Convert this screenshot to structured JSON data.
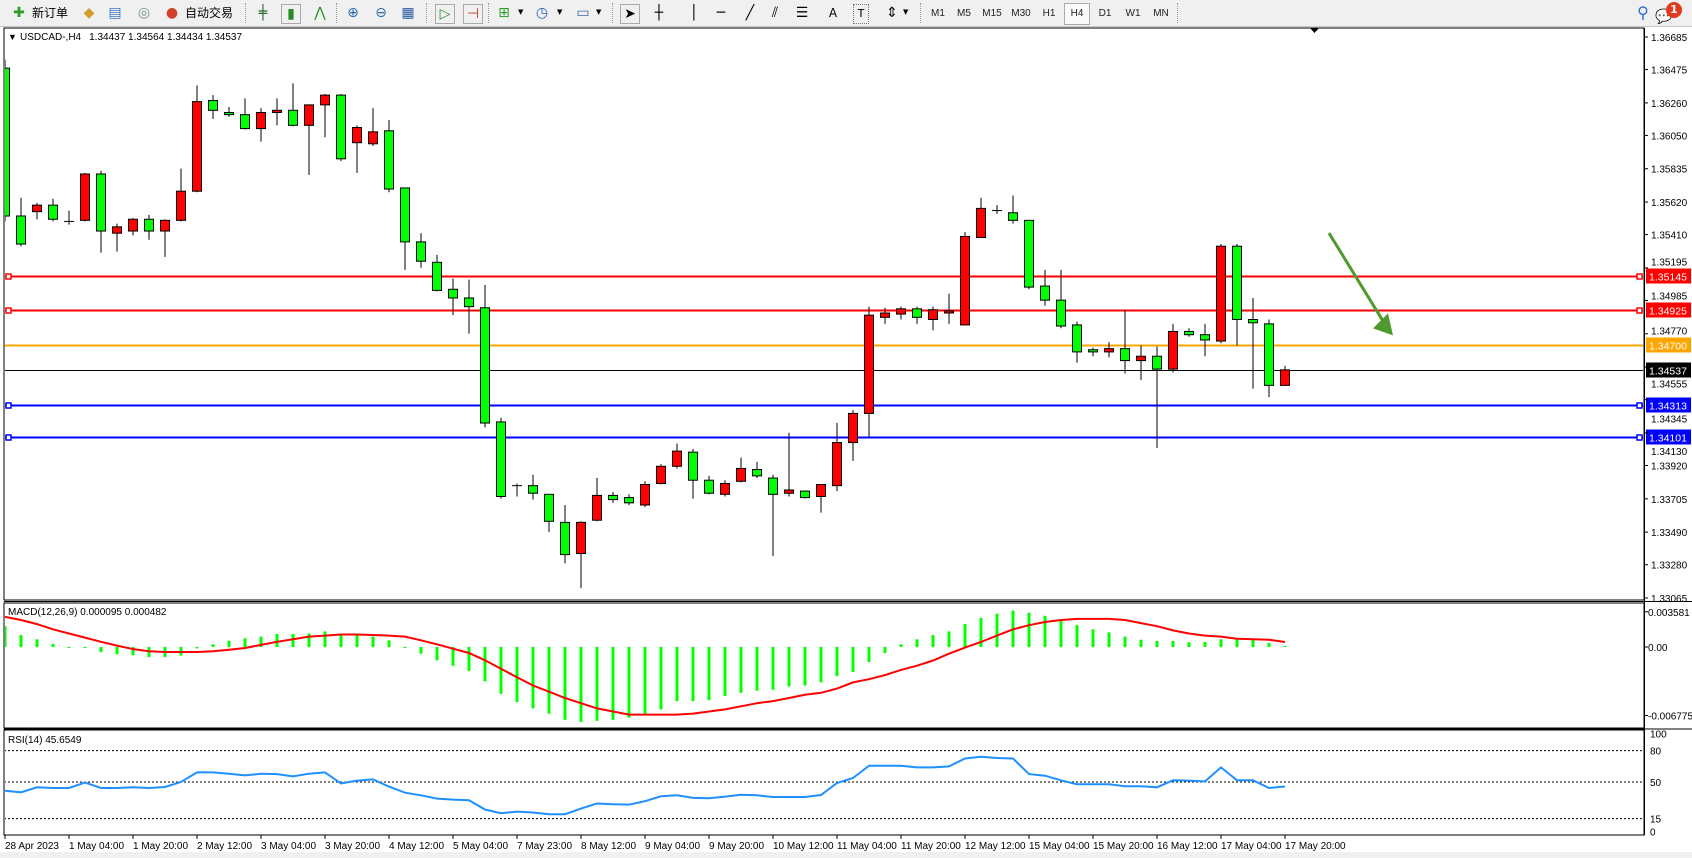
{
  "toolbar": {
    "new_order_label": "新订单",
    "auto_trading_label": "自动交易",
    "timeframes": [
      "M1",
      "M5",
      "M15",
      "M30",
      "H1",
      "H4",
      "D1",
      "W1",
      "MN"
    ],
    "selected_timeframe": "H4",
    "text_tool": "A",
    "notification_count": "1",
    "icons": [
      "new-order-icon",
      "market-watch-icon",
      "navigator-icon",
      "signals-icon",
      "auto-trading-icon",
      "bar-chart-icon",
      "candlestick-icon",
      "line-chart-icon",
      "zoom-in-icon",
      "zoom-out-icon",
      "tile-windows-icon",
      "autoscroll-icon",
      "chart-shift-icon",
      "indicators-icon",
      "periods-icon",
      "templates-icon",
      "cursor-icon",
      "crosshair-icon",
      "vertical-line-icon",
      "horizontal-line-icon",
      "trendline-icon",
      "equidistant-channel-icon",
      "fibonacci-icon",
      "text-icon",
      "text-label-icon",
      "arrows-icon",
      "search-icon",
      "notification-icon"
    ]
  },
  "chart_header": {
    "symbol": "USDCAD-,H4",
    "ohlc": "1.34437 1.34564 1.34434 1.34537"
  },
  "colors": {
    "bull_candle": "#ff0000",
    "bear_candle": "#00ff00",
    "macd_histogram": "#00ff00",
    "macd_signal": "#ff0000",
    "rsi_line": "#1e90ff",
    "resistance": "#ff0000",
    "pivot": "#ffa500",
    "support": "#0000ff",
    "bid": "#000000",
    "arrow": "#4e9a2e"
  },
  "chart_data": [
    {
      "type": "candlestick",
      "ylim": [
        1.33065,
        1.36685
      ],
      "y_ticks": [
        "1.36685",
        "1.36475",
        "1.36260",
        "1.36050",
        "1.35835",
        "1.35620",
        "1.35410",
        "1.35195",
        "1.34985",
        "1.34770",
        "1.34555",
        "1.34345",
        "1.34130",
        "1.33920",
        "1.33705",
        "1.33490",
        "1.33280",
        "1.33065"
      ],
      "x_labels": [
        "28 Apr 2023",
        "1 May 04:00",
        "1 May 20:00",
        "2 May 12:00",
        "3 May 04:00",
        "3 May 20:00",
        "4 May 12:00",
        "5 May 04:00",
        "7 May 23:00",
        "8 May 12:00",
        "9 May 04:00",
        "9 May 20:00",
        "10 May 12:00",
        "11 May 04:00",
        "11 May 20:00",
        "12 May 12:00",
        "15 May 04:00",
        "15 May 20:00",
        "16 May 12:00",
        "17 May 04:00",
        "17 May 20:00"
      ],
      "x_label_every": 4,
      "ohlc": [
        [
          1.36484,
          1.36539,
          1.35495,
          1.3553
        ],
        [
          1.3553,
          1.35648,
          1.35335,
          1.35349
        ],
        [
          1.35558,
          1.35614,
          1.35509,
          1.356
        ],
        [
          1.356,
          1.35641,
          1.35495,
          1.35509
        ],
        [
          1.35495,
          1.35565,
          1.35474,
          1.35492
        ],
        [
          1.35502,
          1.35808,
          1.35495,
          1.35801
        ],
        [
          1.35801,
          1.35822,
          1.35293,
          1.35433
        ],
        [
          1.35419,
          1.35481,
          1.353,
          1.3546
        ],
        [
          1.35433,
          1.35516,
          1.35405,
          1.35509
        ],
        [
          1.35509,
          1.35537,
          1.35377,
          1.35433
        ],
        [
          1.35433,
          1.35509,
          1.35266,
          1.35502
        ],
        [
          1.35502,
          1.35836,
          1.35495,
          1.3569
        ],
        [
          1.3569,
          1.36372,
          1.35683,
          1.36268
        ],
        [
          1.36275,
          1.3631,
          1.36156,
          1.36212
        ],
        [
          1.36198,
          1.36233,
          1.3617,
          1.36184
        ],
        [
          1.36184,
          1.36289,
          1.36087,
          1.36094
        ],
        [
          1.36094,
          1.36226,
          1.3601,
          1.36198
        ],
        [
          1.36198,
          1.36289,
          1.36115,
          1.36212
        ],
        [
          1.36212,
          1.36386,
          1.36108,
          1.36115
        ],
        [
          1.36115,
          1.36247,
          1.35795,
          1.36247
        ],
        [
          1.36247,
          1.36317,
          1.36038,
          1.3631
        ],
        [
          1.3631,
          1.36317,
          1.35885,
          1.35899
        ],
        [
          1.36003,
          1.36115,
          1.35808,
          1.36101
        ],
        [
          1.35996,
          1.36226,
          1.35982,
          1.36073
        ],
        [
          1.3608,
          1.36149,
          1.35683,
          1.35704
        ],
        [
          1.35711,
          1.35711,
          1.35182,
          1.35363
        ],
        [
          1.35363,
          1.35419,
          1.35196,
          1.35238
        ],
        [
          1.35231,
          1.35279,
          1.35043,
          1.3505
        ],
        [
          1.35057,
          1.35126,
          1.3489,
          1.35001
        ],
        [
          1.35001,
          1.35119,
          1.34771,
          1.34945
        ],
        [
          1.34938,
          1.35085,
          1.34166,
          1.34194
        ],
        [
          1.34201,
          1.34228,
          1.33706,
          1.3372
        ],
        [
          1.3379,
          1.33804,
          1.3372,
          1.33783
        ],
        [
          1.3379,
          1.3386,
          1.337,
          1.33741
        ],
        [
          1.33734,
          1.33734,
          1.33491,
          1.3356
        ],
        [
          1.33553,
          1.33665,
          1.33289,
          1.33345
        ],
        [
          1.33352,
          1.3356,
          1.33129,
          1.33553
        ],
        [
          1.33567,
          1.33839,
          1.3356,
          1.33727
        ],
        [
          1.33727,
          1.33748,
          1.33679,
          1.337
        ],
        [
          1.33713,
          1.33734,
          1.33665,
          1.33679
        ],
        [
          1.33665,
          1.33818,
          1.33651,
          1.33797
        ],
        [
          1.33804,
          1.33929,
          1.33797,
          1.33915
        ],
        [
          1.33915,
          1.34061,
          1.33901,
          1.34013
        ],
        [
          1.34006,
          1.34027,
          1.33706,
          1.33825
        ],
        [
          1.33825,
          1.33853,
          1.33734,
          1.33741
        ],
        [
          1.33734,
          1.33825,
          1.3372,
          1.33804
        ],
        [
          1.33818,
          1.33971,
          1.33811,
          1.33901
        ],
        [
          1.33894,
          1.33943,
          1.33839,
          1.33853
        ],
        [
          1.33839,
          1.3386,
          1.33336,
          1.33734
        ],
        [
          1.33741,
          1.34131,
          1.3372,
          1.33762
        ],
        [
          1.33755,
          1.33755,
          1.33706,
          1.33713
        ],
        [
          1.3372,
          1.33797,
          1.33616,
          1.33797
        ],
        [
          1.3379,
          1.34194,
          1.33755,
          1.34068
        ],
        [
          1.34068,
          1.34277,
          1.3395,
          1.34256
        ],
        [
          1.34256,
          1.34945,
          1.34103,
          1.3489
        ],
        [
          1.34876,
          1.34938,
          1.34834,
          1.34904
        ],
        [
          1.34897,
          1.34945,
          1.34862,
          1.34931
        ],
        [
          1.34931,
          1.34945,
          1.34834,
          1.34876
        ],
        [
          1.34862,
          1.34945,
          1.34792,
          1.34925
        ],
        [
          1.34904,
          1.35029,
          1.34834,
          1.34918
        ],
        [
          1.34827,
          1.35426,
          1.34827,
          1.35398
        ],
        [
          1.35391,
          1.35648,
          1.35391,
          1.35579
        ],
        [
          1.35565,
          1.356,
          1.35544,
          1.35558
        ],
        [
          1.35551,
          1.35662,
          1.35481,
          1.35502
        ],
        [
          1.35502,
          1.35502,
          1.35057,
          1.35071
        ],
        [
          1.35078,
          1.35182,
          1.34952,
          1.34987
        ],
        [
          1.34987,
          1.35182,
          1.34806,
          1.3482
        ],
        [
          1.34827,
          1.34848,
          1.34583,
          1.34653
        ],
        [
          1.34667,
          1.34681,
          1.34625,
          1.34653
        ],
        [
          1.34653,
          1.34716,
          1.34618,
          1.34674
        ],
        [
          1.34674,
          1.34925,
          1.34514,
          1.34597
        ],
        [
          1.34597,
          1.34695,
          1.34472,
          1.34625
        ],
        [
          1.34625,
          1.34688,
          1.34034,
          1.34542
        ],
        [
          1.34542,
          1.34834,
          1.34521,
          1.34785
        ],
        [
          1.34785,
          1.34806,
          1.34751,
          1.34764
        ],
        [
          1.34764,
          1.34834,
          1.34625,
          1.3473
        ],
        [
          1.34723,
          1.35349,
          1.34709,
          1.35335
        ],
        [
          1.35335,
          1.35349,
          1.34695,
          1.34862
        ],
        [
          1.34862,
          1.35001,
          1.34416,
          1.34841
        ],
        [
          1.34834,
          1.34862,
          1.34361,
          1.34437
        ],
        [
          1.34437,
          1.34564,
          1.34434,
          1.34537
        ]
      ],
      "horizontal_lines": [
        {
          "price": "1.35145",
          "color": "#ff0000",
          "handle": true
        },
        {
          "price": "1.34925",
          "color": "#ff0000",
          "handle": true
        },
        {
          "price": "1.34700",
          "color": "#ffa500",
          "handle": false
        },
        {
          "price": "1.34537",
          "color": "#000000",
          "handle": false
        },
        {
          "price": "1.34313",
          "color": "#0000ff",
          "handle": true
        },
        {
          "price": "1.34101",
          "color": "#0000ff",
          "handle": true
        }
      ],
      "annotation_arrow": {
        "direction": "down-right",
        "from_price": 1.3542,
        "to_price": 1.3476,
        "color": "#4e9a2e"
      }
    },
    {
      "type": "bar+line",
      "title": "MACD(12,26,9) 0.000095 0.000482",
      "ylim": [
        -0.006775,
        0.003581
      ],
      "y_ticks": [
        "0.003581",
        "0.00",
        "-0.006775"
      ],
      "histogram": [
        0.002,
        0.00115,
        0.00074,
        0.0003,
        -3e-05,
        -6e-05,
        -0.00048,
        -0.0007,
        -0.0008,
        -0.00096,
        -0.00096,
        -0.00083,
        -0.00013,
        0.00026,
        0.0006,
        0.00083,
        0.001,
        0.00125,
        0.00125,
        0.0013,
        0.0015,
        0.00125,
        0.00115,
        0.001,
        0.00064,
        -6e-05,
        -0.00064,
        -0.00128,
        -0.0018,
        -0.0023,
        -0.0033,
        -0.0045,
        -0.0053,
        -0.0059,
        -0.0064,
        -0.007,
        -0.0072,
        -0.0071,
        -0.007,
        -0.0068,
        -0.0064,
        -0.006,
        -0.0052,
        -0.0052,
        -0.0051,
        -0.0047,
        -0.0044,
        -0.0042,
        -0.0041,
        -0.0038,
        -0.0037,
        -0.0034,
        -0.0028,
        -0.0024,
        -0.00144,
        -0.00058,
        0.00026,
        0.00074,
        0.00115,
        0.0015,
        0.0022,
        0.0028,
        0.0032,
        0.0035,
        0.0033,
        0.003,
        0.0025,
        0.0021,
        0.0017,
        0.0014,
        0.001,
        0.0007,
        0.00058,
        0.00058,
        0.00045,
        0.00048,
        0.00074,
        0.00074,
        0.00074,
        0.00038,
        9.5e-05
      ],
      "signal": [
        0.0029,
        0.0026,
        0.0022,
        0.0017,
        0.0013,
        0.0009,
        0.0005,
        0.00013,
        -0.0002,
        -0.0004,
        -0.00048,
        -0.00048,
        -0.00048,
        -0.0004,
        -0.00026,
        -0.0001,
        0.0002,
        0.0005,
        0.00074,
        0.001,
        0.0011,
        0.0012,
        0.0012,
        0.00115,
        0.0011,
        0.001,
        0.00064,
        0.00026,
        -0.00016,
        -0.00058,
        -0.00128,
        -0.0021,
        -0.0029,
        -0.0037,
        -0.0043,
        -0.0049,
        -0.0054,
        -0.0059,
        -0.0062,
        -0.0065,
        -0.0065,
        -0.0065,
        -0.0065,
        -0.0064,
        -0.0062,
        -0.006,
        -0.0057,
        -0.0054,
        -0.0052,
        -0.0049,
        -0.0046,
        -0.0044,
        -0.004,
        -0.0034,
        -0.0031,
        -0.0027,
        -0.0022,
        -0.0018,
        -0.0013,
        -0.00064,
        -6e-05,
        0.00048,
        0.0011,
        0.0017,
        0.0021,
        0.0024,
        0.0026,
        0.0027,
        0.0027,
        0.0027,
        0.0026,
        0.0023,
        0.002,
        0.0016,
        0.0013,
        0.0011,
        0.001,
        0.0008,
        0.00074,
        0.0007,
        0.000482
      ]
    },
    {
      "type": "line",
      "title": "RSI(14) 45.6549",
      "ylim": [
        0,
        100
      ],
      "y_ticks": [
        "100",
        "80",
        "50",
        "15",
        "0"
      ],
      "levels": [
        80,
        50,
        15
      ],
      "values": [
        41.7,
        40.2,
        44.9,
        44.3,
        44.3,
        49.4,
        44.3,
        44.3,
        44.9,
        44.3,
        45.2,
        50,
        59.2,
        59.2,
        57.9,
        56.3,
        57.9,
        57.6,
        55.4,
        57.9,
        59.2,
        48.7,
        51.3,
        52.5,
        45.6,
        39.8,
        37.3,
        34.1,
        33.2,
        32.5,
        23.7,
        20.2,
        21.7,
        20.8,
        19.2,
        19.2,
        24.6,
        29.4,
        28.7,
        28.4,
        31.6,
        36.3,
        37.3,
        34.8,
        34.4,
        36,
        37.9,
        37.3,
        35.7,
        35.7,
        35.7,
        37.6,
        49,
        53.8,
        65.6,
        65.6,
        65.6,
        64,
        64,
        64.9,
        72.5,
        74.1,
        72.9,
        72.5,
        57.6,
        56,
        51.6,
        47.8,
        47.8,
        47.8,
        45.9,
        45.9,
        44.9,
        51.6,
        51.3,
        50.6,
        64,
        51.6,
        51.6,
        44.3,
        45.6549
      ]
    }
  ]
}
